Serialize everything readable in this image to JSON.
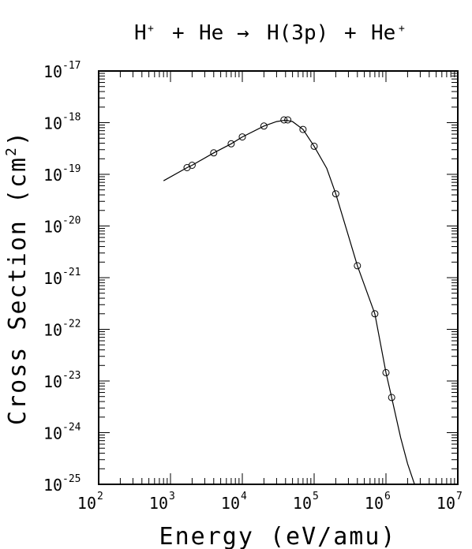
{
  "chart_data": {
    "type": "scatter",
    "title": {
      "lhs_base_1": "H",
      "lhs_sup_1": "+",
      "plus_1": "+",
      "lhs_2": "He",
      "arrow": "→",
      "rhs_1": "H(3p)",
      "plus_2": "+",
      "rhs_base_2": "He",
      "rhs_sup_2": "+"
    },
    "xlabel": "Energy (eV/amu)",
    "ylabel": {
      "text": "Cross Section (cm",
      "sup": "2",
      "close": ")"
    },
    "x_scale": "log",
    "y_scale": "log",
    "xlim": [
      100,
      10000000
    ],
    "ylim": [
      1e-25,
      1e-17
    ],
    "x_ticks": [
      {
        "base": "10",
        "exp": "2"
      },
      {
        "base": "10",
        "exp": "3"
      },
      {
        "base": "10",
        "exp": "4"
      },
      {
        "base": "10",
        "exp": "5"
      },
      {
        "base": "10",
        "exp": "6"
      },
      {
        "base": "10",
        "exp": "7"
      }
    ],
    "y_ticks": [
      {
        "base": "10",
        "exp": "-25"
      },
      {
        "base": "10",
        "exp": "-24"
      },
      {
        "base": "10",
        "exp": "-23"
      },
      {
        "base": "10",
        "exp": "-22"
      },
      {
        "base": "10",
        "exp": "-21"
      },
      {
        "base": "10",
        "exp": "-20"
      },
      {
        "base": "10",
        "exp": "-19"
      },
      {
        "base": "10",
        "exp": "-18"
      },
      {
        "base": "10",
        "exp": "-17"
      }
    ],
    "grid": false,
    "series": [
      {
        "kind": "points",
        "marker": "open-circle",
        "x": [
          1700,
          2000,
          4000,
          7000,
          10000,
          20000,
          38000,
          43000,
          70000,
          100000,
          200000,
          400000,
          700000,
          1000000,
          1200000
        ],
        "y": [
          1.35e-19,
          1.5e-19,
          2.6e-19,
          3.9e-19,
          5.3e-19,
          8.6e-19,
          1.13e-18,
          1.13e-18,
          7.4e-19,
          3.5e-19,
          4.2e-20,
          1.7e-21,
          2e-22,
          1.45e-23,
          4.8e-24
        ]
      },
      {
        "kind": "line",
        "x": [
          800,
          1700,
          2000,
          4000,
          7000,
          10000,
          20000,
          30000,
          40000,
          50000,
          70000,
          100000,
          150000,
          200000,
          300000,
          400000,
          700000,
          1000000,
          1200000,
          1600000,
          2000000,
          2500000
        ],
        "y": [
          7.5e-20,
          1.35e-19,
          1.5e-19,
          2.6e-19,
          3.9e-19,
          5.3e-19,
          8.6e-19,
          1.05e-18,
          1.12e-18,
          1.05e-18,
          7.4e-19,
          3.5e-19,
          1.3e-19,
          4.2e-20,
          6.5e-21,
          1.7e-21,
          2e-22,
          1.45e-23,
          4.8e-24,
          8e-25,
          2.5e-25,
          1e-25
        ]
      }
    ]
  }
}
